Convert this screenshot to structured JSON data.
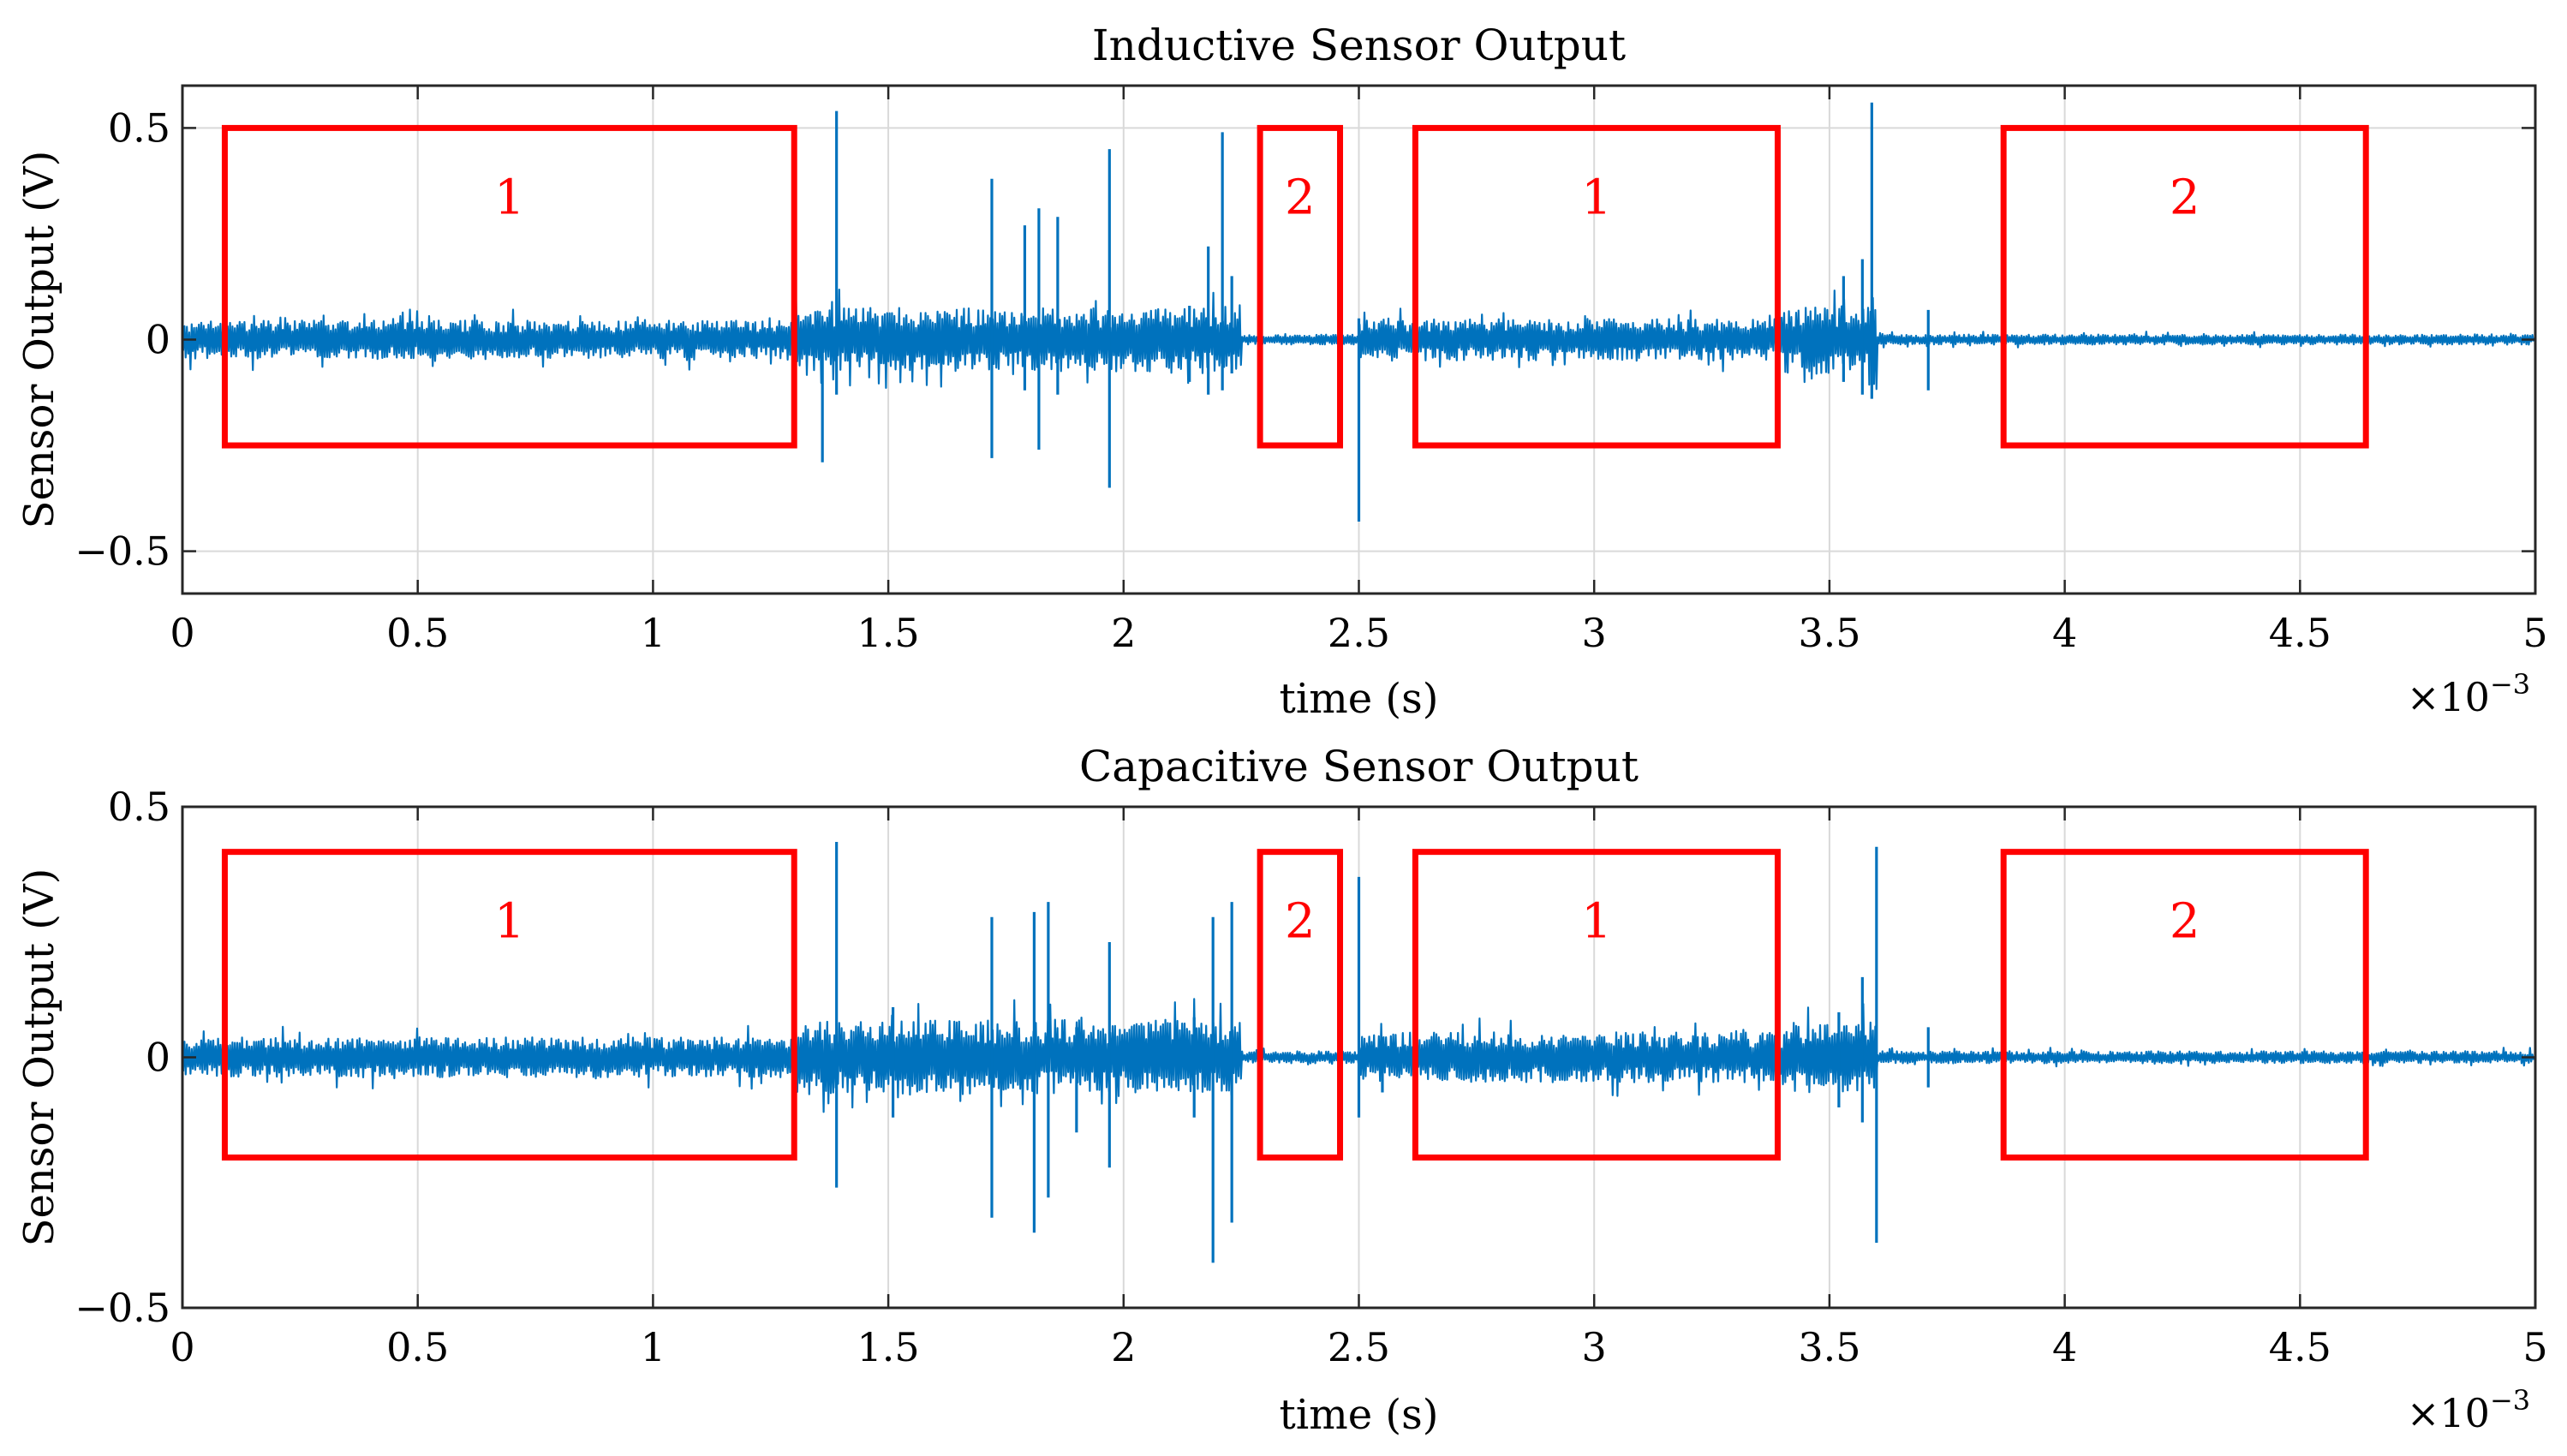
{
  "colors": {
    "series": "#0072BD",
    "regions": "#FF0000",
    "grid": "#D9D9D9",
    "axis": "#262626"
  },
  "chart_data": [
    {
      "type": "line",
      "title": "Inductive Sensor Output",
      "xlabel": "time (s)",
      "ylabel": "Sensor Output (V)",
      "x_exponent": "×10",
      "x_exponent_power": "−3",
      "xlim": [
        0,
        5
      ],
      "ylim": [
        -0.6,
        0.6
      ],
      "xticks": [
        0,
        0.5,
        1,
        1.5,
        2,
        2.5,
        3,
        3.5,
        4,
        4.5,
        5
      ],
      "xtick_labels": [
        "0",
        "0.5",
        "1",
        "1.5",
        "2",
        "2.5",
        "3",
        "3.5",
        "4",
        "4.5",
        "5"
      ],
      "yticks": [
        -0.5,
        0,
        0.5
      ],
      "ytick_labels": [
        "−0.5",
        "0",
        "0.5"
      ],
      "grid": true,
      "series": [
        {
          "name": "Inductive sensor",
          "noise_segments": [
            {
              "x_start": 0.0,
              "x_end": 1.3,
              "amplitude": 0.045
            },
            {
              "x_start": 1.3,
              "x_end": 2.25,
              "amplitude": 0.075
            },
            {
              "x_start": 2.25,
              "x_end": 2.5,
              "amplitude": 0.012
            },
            {
              "x_start": 2.5,
              "x_end": 3.4,
              "amplitude": 0.05
            },
            {
              "x_start": 3.4,
              "x_end": 3.6,
              "amplitude": 0.08
            },
            {
              "x_start": 3.6,
              "x_end": 5.0,
              "amplitude": 0.012
            }
          ],
          "spikes": [
            {
              "x": 1.36,
              "min": -0.29,
              "max": 0.0
            },
            {
              "x": 1.39,
              "min": -0.13,
              "max": 0.54
            },
            {
              "x": 1.72,
              "min": -0.28,
              "max": 0.38
            },
            {
              "x": 1.79,
              "min": -0.12,
              "max": 0.27
            },
            {
              "x": 1.82,
              "min": -0.26,
              "max": 0.31
            },
            {
              "x": 1.86,
              "min": -0.13,
              "max": 0.29
            },
            {
              "x": 1.97,
              "min": -0.35,
              "max": 0.45
            },
            {
              "x": 2.14,
              "min": -0.1,
              "max": 0.08
            },
            {
              "x": 2.18,
              "min": -0.13,
              "max": 0.22
            },
            {
              "x": 2.21,
              "min": -0.12,
              "max": 0.49
            },
            {
              "x": 2.23,
              "min": -0.08,
              "max": 0.15
            },
            {
              "x": 2.5,
              "min": -0.43,
              "max": 0.05
            },
            {
              "x": 3.53,
              "min": -0.1,
              "max": 0.15
            },
            {
              "x": 3.57,
              "min": -0.13,
              "max": 0.19
            },
            {
              "x": 3.59,
              "min": -0.14,
              "max": 0.56
            },
            {
              "x": 3.71,
              "min": -0.12,
              "max": 0.07
            }
          ]
        }
      ],
      "regions": [
        {
          "label": "1",
          "x_start": 0.09,
          "x_end": 1.3,
          "y_bottom": -0.25,
          "y_top": 0.5
        },
        {
          "label": "2",
          "x_start": 2.29,
          "x_end": 2.46,
          "y_bottom": -0.25,
          "y_top": 0.5
        },
        {
          "label": "1",
          "x_start": 2.62,
          "x_end": 3.39,
          "y_bottom": -0.25,
          "y_top": 0.5
        },
        {
          "label": "2",
          "x_start": 3.87,
          "x_end": 4.64,
          "y_bottom": -0.25,
          "y_top": 0.5
        }
      ]
    },
    {
      "type": "line",
      "title": "Capacitive Sensor Output",
      "xlabel": "time (s)",
      "ylabel": "Sensor Output (V)",
      "x_exponent": "×10",
      "x_exponent_power": "−3",
      "xlim": [
        0,
        5
      ],
      "ylim": [
        -0.5,
        0.5
      ],
      "xticks": [
        0,
        0.5,
        1,
        1.5,
        2,
        2.5,
        3,
        3.5,
        4,
        4.5,
        5
      ],
      "xtick_labels": [
        "0",
        "0.5",
        "1",
        "1.5",
        "2",
        "2.5",
        "3",
        "3.5",
        "4",
        "4.5",
        "5"
      ],
      "yticks": [
        -0.5,
        0,
        0.5
      ],
      "ytick_labels": [
        "−0.5",
        "0",
        "0.5"
      ],
      "grid": true,
      "series": [
        {
          "name": "Capacitive sensor",
          "noise_segments": [
            {
              "x_start": 0.0,
              "x_end": 1.3,
              "amplitude": 0.04
            },
            {
              "x_start": 1.3,
              "x_end": 2.25,
              "amplitude": 0.075
            },
            {
              "x_start": 2.25,
              "x_end": 2.5,
              "amplitude": 0.012
            },
            {
              "x_start": 2.5,
              "x_end": 3.4,
              "amplitude": 0.05
            },
            {
              "x_start": 3.4,
              "x_end": 3.6,
              "amplitude": 0.07
            },
            {
              "x_start": 3.6,
              "x_end": 5.0,
              "amplitude": 0.012
            }
          ],
          "spikes": [
            {
              "x": 1.39,
              "min": -0.26,
              "max": 0.43
            },
            {
              "x": 1.51,
              "min": -0.12,
              "max": 0.1
            },
            {
              "x": 1.72,
              "min": -0.32,
              "max": 0.28
            },
            {
              "x": 1.81,
              "min": -0.35,
              "max": 0.29
            },
            {
              "x": 1.84,
              "min": -0.28,
              "max": 0.31
            },
            {
              "x": 1.9,
              "min": -0.15,
              "max": 0.06
            },
            {
              "x": 1.97,
              "min": -0.22,
              "max": 0.23
            },
            {
              "x": 2.15,
              "min": -0.12,
              "max": 0.08
            },
            {
              "x": 2.19,
              "min": -0.41,
              "max": 0.28
            },
            {
              "x": 2.23,
              "min": -0.33,
              "max": 0.31
            },
            {
              "x": 2.5,
              "min": -0.12,
              "max": 0.36
            },
            {
              "x": 2.55,
              "min": -0.07,
              "max": 0.04
            },
            {
              "x": 3.52,
              "min": -0.1,
              "max": 0.09
            },
            {
              "x": 3.57,
              "min": -0.13,
              "max": 0.16
            },
            {
              "x": 3.6,
              "min": -0.37,
              "max": 0.42
            },
            {
              "x": 3.71,
              "min": -0.06,
              "max": 0.06
            }
          ]
        }
      ],
      "regions": [
        {
          "label": "1",
          "x_start": 0.09,
          "x_end": 1.3,
          "y_bottom": -0.2,
          "y_top": 0.41
        },
        {
          "label": "2",
          "x_start": 2.29,
          "x_end": 2.46,
          "y_bottom": -0.2,
          "y_top": 0.41
        },
        {
          "label": "1",
          "x_start": 2.62,
          "x_end": 3.39,
          "y_bottom": -0.2,
          "y_top": 0.41
        },
        {
          "label": "2",
          "x_start": 3.87,
          "x_end": 4.64,
          "y_bottom": -0.2,
          "y_top": 0.41
        }
      ]
    }
  ]
}
